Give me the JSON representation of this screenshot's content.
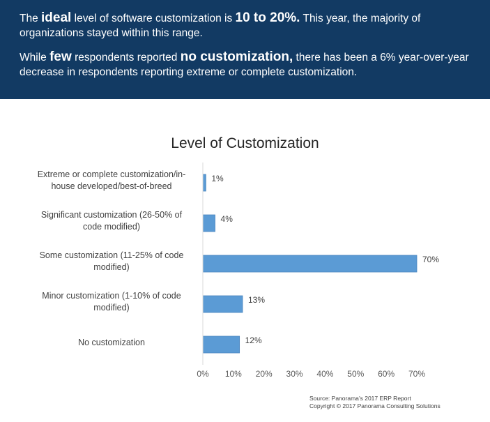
{
  "banner": {
    "p1": {
      "t1": "The ",
      "t2": "ideal",
      "t3": " level of software customization is ",
      "t4": "10 to 20%.",
      "t5": " This year, the majority of organizations stayed within this range."
    },
    "p2": {
      "t1": "While ",
      "t2": "few",
      "t3": " respondents reported ",
      "t4": "no customization,",
      "t5": " there has been a 6% year-over-year decrease in respondents reporting extreme or complete customization."
    }
  },
  "colors": {
    "banner_bg": "#123a63",
    "bar": "#5b9bd5",
    "bar_border": "#4a86bf"
  },
  "chart_data": {
    "type": "bar",
    "orientation": "horizontal",
    "title": "Level of Customization",
    "categories": [
      [
        "Extreme or complete customization/in-",
        "house developed/best-of-breed"
      ],
      [
        "Significant customization (26-50% of",
        "code modified)"
      ],
      [
        "Some customization (11-25% of code",
        "modified)"
      ],
      [
        "Minor customization (1-10% of code",
        "modified)"
      ],
      [
        "No customization"
      ]
    ],
    "values": [
      1,
      4,
      70,
      13,
      12
    ],
    "value_labels": [
      "1%",
      "4%",
      "70%",
      "13%",
      "12%"
    ],
    "xlim": [
      0,
      70
    ],
    "xticks": [
      0,
      10,
      20,
      30,
      40,
      50,
      60,
      70
    ],
    "xtick_labels": [
      "0%",
      "10%",
      "20%",
      "30%",
      "40%",
      "50%",
      "60%",
      "70%"
    ],
    "grid": false,
    "legend": "none"
  },
  "source": {
    "line1": "Source: Panorama’s 2017 ERP Report",
    "line2": "Copyright © 2017 Panorama Consulting Solutions"
  }
}
